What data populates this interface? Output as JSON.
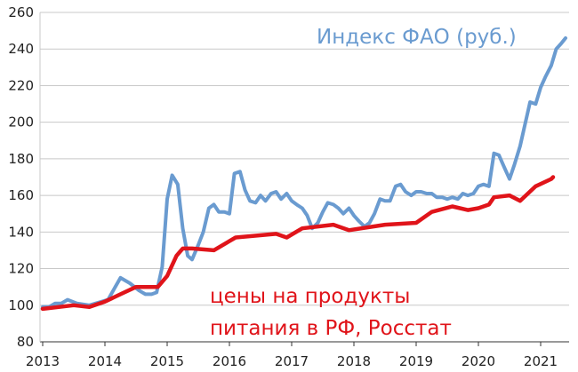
{
  "chart_data": {
    "type": "line",
    "title": "",
    "xlabel": "",
    "ylabel": "",
    "xlim": [
      2013.0,
      2021.5
    ],
    "ylim": [
      80,
      260
    ],
    "yticks": [
      80,
      100,
      120,
      140,
      160,
      180,
      200,
      220,
      240,
      260
    ],
    "xticks": [
      "2013",
      "2014",
      "2015",
      "2016",
      "2017",
      "2018",
      "2019",
      "2020",
      "2021"
    ],
    "grid": true,
    "series": [
      {
        "name": "Индекс ФАО (руб.)",
        "color": "#6a9bd0",
        "points": [
          [
            2013.0,
            99
          ],
          [
            2013.1,
            99
          ],
          [
            2013.2,
            101
          ],
          [
            2013.3,
            101
          ],
          [
            2013.4,
            103
          ],
          [
            2013.55,
            101
          ],
          [
            2013.75,
            100
          ],
          [
            2013.95,
            102
          ],
          [
            2014.05,
            103
          ],
          [
            2014.15,
            109
          ],
          [
            2014.25,
            115
          ],
          [
            2014.4,
            112
          ],
          [
            2014.55,
            108
          ],
          [
            2014.65,
            106
          ],
          [
            2014.75,
            106
          ],
          [
            2014.83,
            107
          ],
          [
            2014.92,
            121
          ],
          [
            2015.0,
            158
          ],
          [
            2015.08,
            171
          ],
          [
            2015.17,
            166
          ],
          [
            2015.25,
            142
          ],
          [
            2015.33,
            127
          ],
          [
            2015.4,
            125
          ],
          [
            2015.5,
            133
          ],
          [
            2015.58,
            140
          ],
          [
            2015.67,
            153
          ],
          [
            2015.75,
            155
          ],
          [
            2015.83,
            151
          ],
          [
            2015.92,
            151
          ],
          [
            2016.0,
            150
          ],
          [
            2016.08,
            172
          ],
          [
            2016.17,
            173
          ],
          [
            2016.25,
            163
          ],
          [
            2016.33,
            157
          ],
          [
            2016.42,
            156
          ],
          [
            2016.5,
            160
          ],
          [
            2016.58,
            157
          ],
          [
            2016.67,
            161
          ],
          [
            2016.75,
            162
          ],
          [
            2016.83,
            158
          ],
          [
            2016.92,
            161
          ],
          [
            2017.0,
            157
          ],
          [
            2017.08,
            155
          ],
          [
            2017.17,
            153
          ],
          [
            2017.25,
            149
          ],
          [
            2017.33,
            142
          ],
          [
            2017.42,
            145
          ],
          [
            2017.5,
            151
          ],
          [
            2017.58,
            156
          ],
          [
            2017.67,
            155
          ],
          [
            2017.75,
            153
          ],
          [
            2017.83,
            150
          ],
          [
            2017.92,
            153
          ],
          [
            2018.0,
            149
          ],
          [
            2018.08,
            146
          ],
          [
            2018.17,
            143
          ],
          [
            2018.25,
            145
          ],
          [
            2018.33,
            150
          ],
          [
            2018.42,
            158
          ],
          [
            2018.5,
            157
          ],
          [
            2018.58,
            157
          ],
          [
            2018.67,
            165
          ],
          [
            2018.75,
            166
          ],
          [
            2018.83,
            162
          ],
          [
            2018.92,
            160
          ],
          [
            2019.0,
            162
          ],
          [
            2019.08,
            162
          ],
          [
            2019.17,
            161
          ],
          [
            2019.25,
            161
          ],
          [
            2019.33,
            159
          ],
          [
            2019.42,
            159
          ],
          [
            2019.5,
            158
          ],
          [
            2019.58,
            159
          ],
          [
            2019.67,
            158
          ],
          [
            2019.75,
            161
          ],
          [
            2019.83,
            160
          ],
          [
            2019.92,
            161
          ],
          [
            2020.0,
            165
          ],
          [
            2020.08,
            166
          ],
          [
            2020.17,
            165
          ],
          [
            2020.25,
            183
          ],
          [
            2020.33,
            182
          ],
          [
            2020.42,
            175
          ],
          [
            2020.5,
            169
          ],
          [
            2020.58,
            177
          ],
          [
            2020.67,
            187
          ],
          [
            2020.75,
            199
          ],
          [
            2020.83,
            211
          ],
          [
            2020.92,
            210
          ],
          [
            2021.0,
            219
          ],
          [
            2021.08,
            225
          ],
          [
            2021.17,
            231
          ],
          [
            2021.25,
            240
          ],
          [
            2021.33,
            243
          ],
          [
            2021.4,
            246
          ]
        ]
      },
      {
        "name": "цены на продукты питания в РФ, Росстат",
        "color": "#e0141a",
        "points": [
          [
            2013.0,
            98
          ],
          [
            2013.5,
            100
          ],
          [
            2013.75,
            99
          ],
          [
            2014.0,
            102
          ],
          [
            2014.25,
            106
          ],
          [
            2014.5,
            110
          ],
          [
            2014.85,
            110
          ],
          [
            2015.0,
            116
          ],
          [
            2015.15,
            127
          ],
          [
            2015.25,
            131
          ],
          [
            2015.4,
            131
          ],
          [
            2015.75,
            130
          ],
          [
            2016.0,
            135
          ],
          [
            2016.1,
            137
          ],
          [
            2016.75,
            139
          ],
          [
            2016.92,
            137
          ],
          [
            2017.17,
            142
          ],
          [
            2017.67,
            144
          ],
          [
            2017.92,
            141
          ],
          [
            2018.5,
            144
          ],
          [
            2019.0,
            145
          ],
          [
            2019.25,
            151
          ],
          [
            2019.58,
            154
          ],
          [
            2019.83,
            152
          ],
          [
            2020.0,
            153
          ],
          [
            2020.17,
            155
          ],
          [
            2020.25,
            159
          ],
          [
            2020.5,
            160
          ],
          [
            2020.67,
            157
          ],
          [
            2020.92,
            165
          ],
          [
            2021.17,
            169
          ],
          [
            2021.2,
            170
          ]
        ]
      }
    ]
  }
}
